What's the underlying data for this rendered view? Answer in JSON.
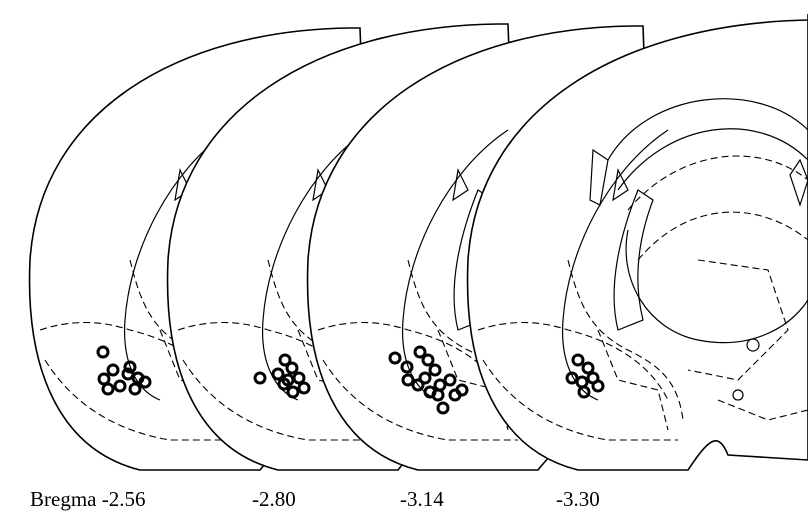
{
  "labels": [
    "Bregma -2.56",
    "-2.80",
    "-3.14",
    "-3.30"
  ]
}
